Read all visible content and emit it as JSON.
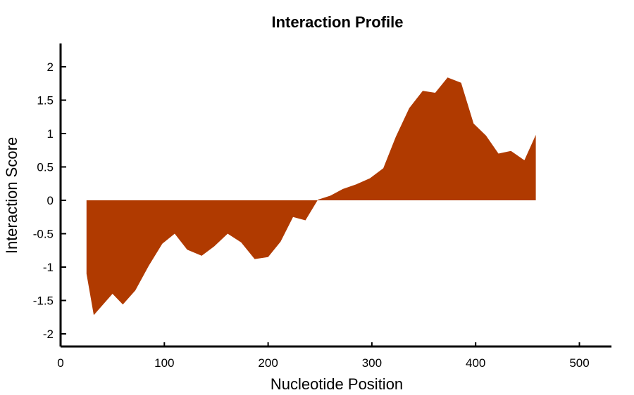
{
  "chart_data": {
    "type": "area",
    "title": "Interaction Profile",
    "xlabel": "Nucleotide Position",
    "ylabel": "Interaction Score",
    "xlim": [
      0,
      530
    ],
    "ylim": [
      -2.1,
      2.35
    ],
    "xticks": [
      0,
      100,
      200,
      300,
      400,
      500
    ],
    "yticks": [
      -2,
      -1.5,
      -1,
      -0.5,
      0,
      0.5,
      1,
      1.5,
      2
    ],
    "ytick_labels": [
      "-2",
      "-1.5",
      "-1",
      "-0.5",
      "0",
      "0.5",
      "1",
      "1.5",
      "2"
    ],
    "grid": false,
    "legend": "none",
    "color": "#b03a00",
    "series": [
      {
        "x": [
          25,
          25,
          32,
          50,
          60,
          72,
          85,
          98,
          110,
          122,
          136,
          148,
          161,
          174,
          187,
          200,
          212,
          224,
          236,
          248,
          260,
          272,
          285,
          298,
          311,
          323,
          336,
          349,
          361,
          373,
          386,
          398,
          410,
          422,
          434,
          447,
          458,
          458
        ],
        "y": [
          0,
          -1.1,
          -1.72,
          -1.4,
          -1.56,
          -1.35,
          -0.98,
          -0.65,
          -0.5,
          -0.74,
          -0.83,
          -0.69,
          -0.5,
          -0.63,
          -0.88,
          -0.85,
          -0.62,
          -0.25,
          -0.3,
          0.01,
          0.07,
          0.17,
          0.24,
          0.33,
          0.48,
          0.95,
          1.38,
          1.64,
          1.61,
          1.84,
          1.76,
          1.15,
          0.97,
          0.7,
          0.74,
          0.6,
          0.98,
          0
        ]
      }
    ]
  }
}
